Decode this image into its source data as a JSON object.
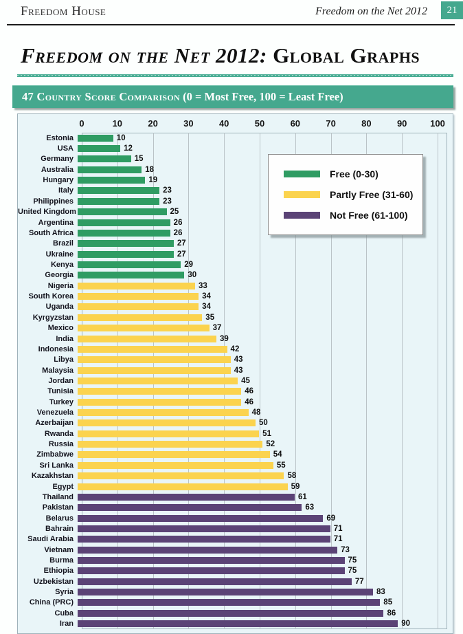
{
  "header": {
    "brand": "Freedom House",
    "doc_title": "Freedom on the Net 2012",
    "page_number": "21"
  },
  "title": {
    "part1": "Freedom on the Net 2012:",
    "part2": " Global Graphs"
  },
  "banner": {
    "part1": "47 Country Score Comparison",
    "part2": " (0 = Most Free, 100 = Least Free)"
  },
  "colors": {
    "accent_teal": "#45A88E",
    "free_green": "#2F9C63",
    "partly_free_yellow": "#FBD34E",
    "not_free_purple": "#5B4376",
    "chart_background": "#E9F5F8",
    "gridline": "#BAC3C7"
  },
  "chart_data": {
    "type": "bar",
    "orientation": "horizontal",
    "title": "47 Country Score Comparison (0 = Most Free, 100 = Least Free)",
    "xlabel": "",
    "ylabel": "",
    "xlim": [
      0,
      100
    ],
    "x_ticks": [
      0,
      10,
      20,
      30,
      40,
      50,
      60,
      70,
      80,
      90,
      100
    ],
    "grid": true,
    "legend_position": "inside-top-right",
    "legend": [
      {
        "label": "Free (0-30)",
        "status": "free",
        "color": "#2F9C63"
      },
      {
        "label": "Partly Free (31-60)",
        "status": "partly_free",
        "color": "#FBD34E"
      },
      {
        "label": "Not Free (61-100)",
        "status": "not_free",
        "color": "#5B4376"
      }
    ],
    "status_colors": {
      "free": "#2F9C63",
      "partly_free": "#FBD34E",
      "not_free": "#5B4376"
    },
    "bars": [
      {
        "country": "Estonia",
        "value": 10,
        "status": "free"
      },
      {
        "country": "USA",
        "value": 12,
        "status": "free"
      },
      {
        "country": "Germany",
        "value": 15,
        "status": "free"
      },
      {
        "country": "Australia",
        "value": 18,
        "status": "free"
      },
      {
        "country": "Hungary",
        "value": 19,
        "status": "free"
      },
      {
        "country": "Italy",
        "value": 23,
        "status": "free"
      },
      {
        "country": "Philippines",
        "value": 23,
        "status": "free"
      },
      {
        "country": "United Kingdom",
        "value": 25,
        "status": "free"
      },
      {
        "country": "Argentina",
        "value": 26,
        "status": "free"
      },
      {
        "country": "South Africa",
        "value": 26,
        "status": "free"
      },
      {
        "country": "Brazil",
        "value": 27,
        "status": "free"
      },
      {
        "country": "Ukraine",
        "value": 27,
        "status": "free"
      },
      {
        "country": "Kenya",
        "value": 29,
        "status": "free"
      },
      {
        "country": "Georgia",
        "value": 30,
        "status": "free"
      },
      {
        "country": "Nigeria",
        "value": 33,
        "status": "partly_free"
      },
      {
        "country": "South Korea",
        "value": 34,
        "status": "partly_free"
      },
      {
        "country": "Uganda",
        "value": 34,
        "status": "partly_free"
      },
      {
        "country": "Kyrgyzstan",
        "value": 35,
        "status": "partly_free"
      },
      {
        "country": "Mexico",
        "value": 37,
        "status": "partly_free"
      },
      {
        "country": "India",
        "value": 39,
        "status": "partly_free"
      },
      {
        "country": "Indonesia",
        "value": 42,
        "status": "partly_free"
      },
      {
        "country": "Libya",
        "value": 43,
        "status": "partly_free"
      },
      {
        "country": "Malaysia",
        "value": 43,
        "status": "partly_free"
      },
      {
        "country": "Jordan",
        "value": 45,
        "status": "partly_free"
      },
      {
        "country": "Tunisia",
        "value": 46,
        "status": "partly_free"
      },
      {
        "country": "Turkey",
        "value": 46,
        "status": "partly_free"
      },
      {
        "country": "Venezuela",
        "value": 48,
        "status": "partly_free"
      },
      {
        "country": "Azerbaijan",
        "value": 50,
        "status": "partly_free"
      },
      {
        "country": "Rwanda",
        "value": 51,
        "status": "partly_free"
      },
      {
        "country": "Russia",
        "value": 52,
        "status": "partly_free"
      },
      {
        "country": "Zimbabwe",
        "value": 54,
        "status": "partly_free"
      },
      {
        "country": "Sri Lanka",
        "value": 55,
        "status": "partly_free"
      },
      {
        "country": "Kazakhstan",
        "value": 58,
        "status": "partly_free"
      },
      {
        "country": "Egypt",
        "value": 59,
        "status": "partly_free"
      },
      {
        "country": "Thailand",
        "value": 61,
        "status": "not_free"
      },
      {
        "country": "Pakistan",
        "value": 63,
        "status": "not_free"
      },
      {
        "country": "Belarus",
        "value": 69,
        "status": "not_free"
      },
      {
        "country": "Bahrain",
        "value": 71,
        "status": "not_free"
      },
      {
        "country": "Saudi Arabia",
        "value": 71,
        "status": "not_free"
      },
      {
        "country": "Vietnam",
        "value": 73,
        "status": "not_free"
      },
      {
        "country": "Burma",
        "value": 75,
        "status": "not_free"
      },
      {
        "country": "Ethiopia",
        "value": 75,
        "status": "not_free"
      },
      {
        "country": "Uzbekistan",
        "value": 77,
        "status": "not_free"
      },
      {
        "country": "Syria",
        "value": 83,
        "status": "not_free"
      },
      {
        "country": "China (PRC)",
        "value": 85,
        "status": "not_free"
      },
      {
        "country": "Cuba",
        "value": 86,
        "status": "not_free"
      },
      {
        "country": "Iran",
        "value": 90,
        "status": "not_free"
      }
    ]
  }
}
